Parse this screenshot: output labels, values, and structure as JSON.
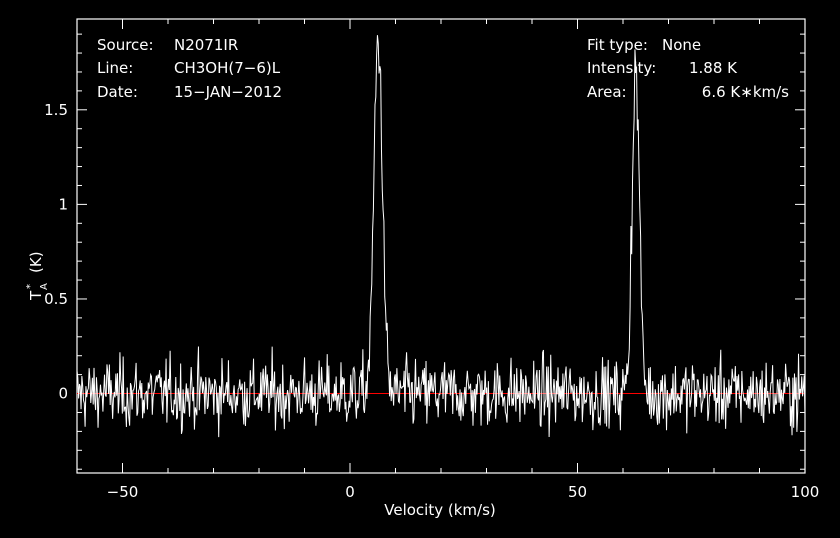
{
  "chart_data": {
    "type": "line",
    "xlabel": "Velocity (km/s)",
    "ylabel": "T",
    "ylabel_sub": "A",
    "ylabel_sup": "*",
    "ylabel_unit": "(K)",
    "xlim": [
      -60,
      100
    ],
    "ylim": [
      -0.42,
      1.98
    ],
    "x_ticks": [
      -50,
      0,
      50,
      100
    ],
    "x_tick_labels": [
      "−50",
      "0",
      "50",
      "100"
    ],
    "y_ticks": [
      0,
      0.5,
      1,
      1.5
    ],
    "y_tick_labels": [
      "0",
      "0.5",
      "1",
      "1.5"
    ],
    "x_minor_step": 10,
    "y_minor_step": 0.1,
    "baseline": 0,
    "baseline_color": "#ff0000",
    "line_color": "#ffffff",
    "background": "#000000",
    "grid": false,
    "noise_rms": 0.09,
    "peaks": [
      {
        "center": 6.2,
        "amplitude": 1.88,
        "width": 2.2
      },
      {
        "center": 62.8,
        "amplitude": 1.72,
        "width": 1.9
      }
    ],
    "info_left": [
      {
        "label": "Source:",
        "value": "N2071IR"
      },
      {
        "label": "Line:",
        "value": "CH3OH(7−6)L"
      },
      {
        "label": "Date:",
        "value": "15−JAN−2012"
      }
    ],
    "info_right": [
      {
        "label": "Fit type:",
        "value": "None"
      },
      {
        "label": "Intensity:",
        "value": "1.88 K"
      },
      {
        "label": "Area:",
        "value": "6.6 K∗km/s"
      }
    ]
  }
}
